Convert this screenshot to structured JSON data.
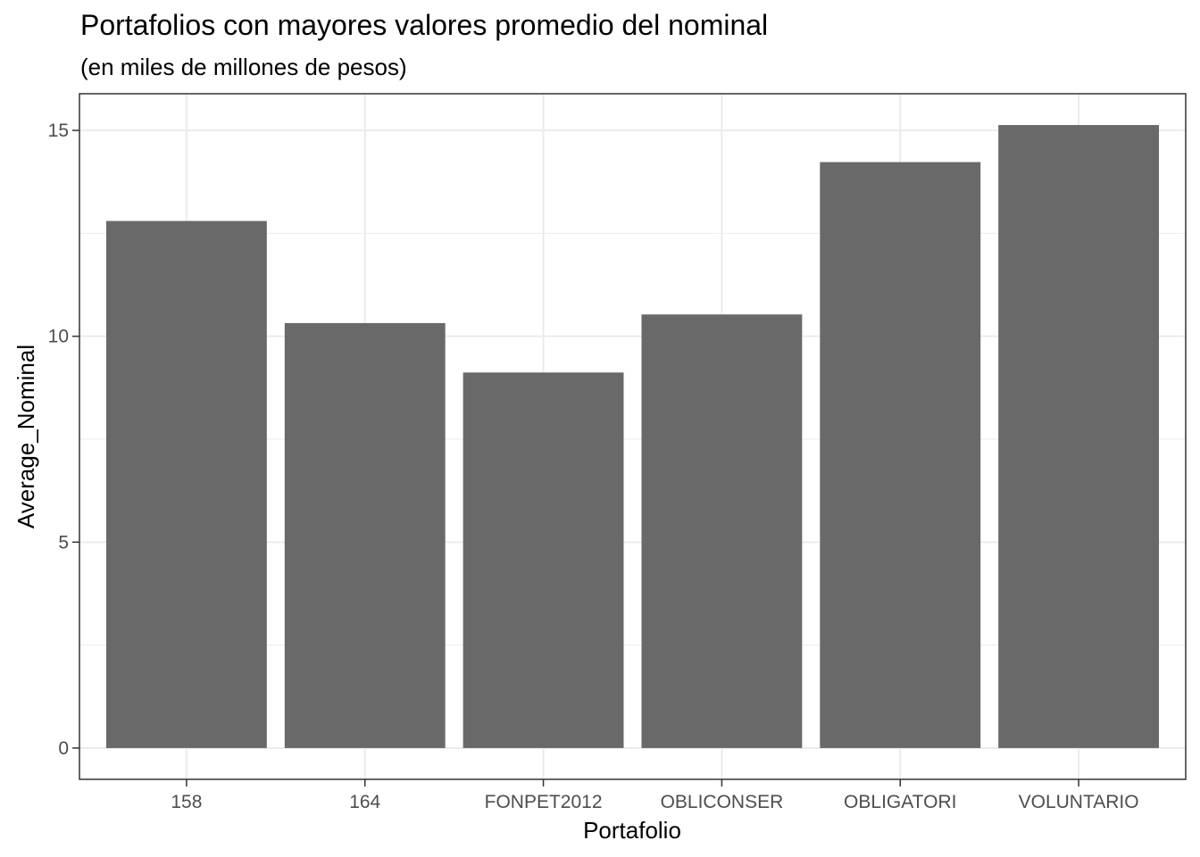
{
  "chart_data": {
    "type": "bar",
    "title": "Portafolios con mayores valores promedio del nominal",
    "subtitle": "(en miles de millones de pesos)",
    "xlabel": "Portafolio",
    "ylabel": "Average_Nominal",
    "categories": [
      "158",
      "164",
      "FONPET2012",
      "OBLICONSER",
      "OBLIGATORI",
      "VOLUNTARIO"
    ],
    "values": [
      12.8,
      10.32,
      9.12,
      10.53,
      14.23,
      15.13
    ],
    "yticks": [
      0,
      5,
      10,
      15
    ],
    "ylim": [
      -0.76,
      15.89
    ],
    "grid": true,
    "bar_color": "#696969",
    "panel_border_color": "#333333",
    "grid_color": "#ebebeb"
  }
}
